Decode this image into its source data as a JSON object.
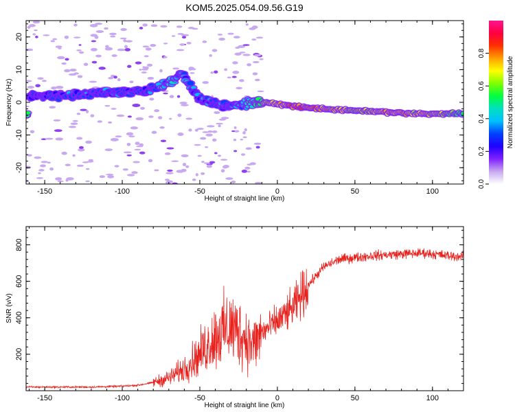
{
  "figure": {
    "title": "KOM5.2025.054.09.56.G19"
  },
  "chart_data": [
    {
      "type": "heatmap",
      "xlabel": "Height of straight line (km)",
      "ylabel": "Frequency (Hz)",
      "xlim": [
        -162,
        120
      ],
      "ylim": [
        -25,
        25
      ],
      "xticks": [
        -150,
        -100,
        -50,
        0,
        50,
        100
      ],
      "yticks": [
        -20,
        -10,
        0,
        10,
        20
      ],
      "colorbar": {
        "label": "Normalized spectral amplitude",
        "range": [
          0,
          1
        ],
        "ticks": [
          0.0,
          0.2,
          0.4,
          0.6,
          0.8
        ],
        "colors": [
          "#ffffff",
          "#c8a8f0",
          "#8020ff",
          "#2000ff",
          "#0040ff",
          "#00c0ff",
          "#00e0c0",
          "#00ff40",
          "#80ff00",
          "#ffff00",
          "#ffa000",
          "#ff3000",
          "#ff0040",
          "#ff1493"
        ]
      },
      "ridge": [
        {
          "x": -160,
          "y": 2,
          "a": 0.25
        },
        {
          "x": -140,
          "y": 2,
          "a": 0.3
        },
        {
          "x": -120,
          "y": 2.5,
          "a": 0.3
        },
        {
          "x": -100,
          "y": 3,
          "a": 0.3
        },
        {
          "x": -85,
          "y": 3.5,
          "a": 0.3
        },
        {
          "x": -75,
          "y": 5,
          "a": 0.35
        },
        {
          "x": -68,
          "y": 6.5,
          "a": 0.45
        },
        {
          "x": -62,
          "y": 9,
          "a": 0.35
        },
        {
          "x": -50,
          "y": 1,
          "a": 0.3
        },
        {
          "x": -35,
          "y": -1,
          "a": 0.3
        },
        {
          "x": -25,
          "y": -0.5,
          "a": 0.35
        },
        {
          "x": -12,
          "y": 0,
          "a": 0.55
        },
        {
          "x": 0,
          "y": -0.5,
          "a": 0.75
        },
        {
          "x": 15,
          "y": -1.5,
          "a": 0.8
        },
        {
          "x": 30,
          "y": -2,
          "a": 0.75
        },
        {
          "x": 50,
          "y": -2.5,
          "a": 0.65
        },
        {
          "x": 70,
          "y": -3,
          "a": 0.7
        },
        {
          "x": 90,
          "y": -3.5,
          "a": 0.7
        },
        {
          "x": 110,
          "y": -3.5,
          "a": 0.6
        },
        {
          "x": 120,
          "y": -3.5,
          "a": 0.55
        }
      ]
    },
    {
      "type": "line",
      "xlabel": "Height of straight line (km)",
      "ylabel": "SNR (v/v)",
      "xlim": [
        -162,
        120
      ],
      "ylim": [
        0,
        900
      ],
      "xticks": [
        -150,
        -100,
        -50,
        0,
        50,
        100
      ],
      "yticks": [
        200,
        400,
        600,
        800
      ],
      "color": "#e8211d",
      "envelope": [
        {
          "x": -162,
          "y": 20
        },
        {
          "x": -120,
          "y": 20
        },
        {
          "x": -100,
          "y": 25
        },
        {
          "x": -90,
          "y": 30
        },
        {
          "x": -80,
          "y": 45
        },
        {
          "x": -70,
          "y": 70
        },
        {
          "x": -60,
          "y": 120
        },
        {
          "x": -50,
          "y": 200
        },
        {
          "x": -40,
          "y": 300
        },
        {
          "x": -30,
          "y": 350
        },
        {
          "x": -22,
          "y": 300
        },
        {
          "x": -15,
          "y": 250
        },
        {
          "x": -10,
          "y": 320
        },
        {
          "x": 0,
          "y": 380
        },
        {
          "x": 10,
          "y": 450
        },
        {
          "x": 20,
          "y": 580
        },
        {
          "x": 30,
          "y": 680
        },
        {
          "x": 40,
          "y": 720
        },
        {
          "x": 60,
          "y": 740
        },
        {
          "x": 80,
          "y": 750
        },
        {
          "x": 95,
          "y": 755
        },
        {
          "x": 110,
          "y": 740
        },
        {
          "x": 120,
          "y": 735
        }
      ]
    }
  ]
}
